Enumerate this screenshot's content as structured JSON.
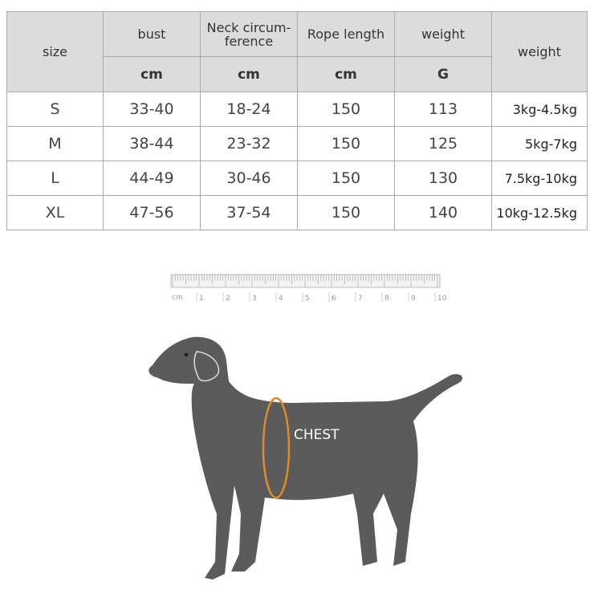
{
  "table": {
    "header": {
      "size": "size",
      "columns": [
        {
          "label": "bust",
          "unit": "cm"
        },
        {
          "label": "Neck circum-\nference",
          "unit": "cm"
        },
        {
          "label": "Rope length",
          "unit": "cm"
        },
        {
          "label": "weight",
          "unit": "G"
        }
      ],
      "weight": "weight"
    },
    "rows": [
      [
        "S",
        "33-40",
        "18-24",
        "150",
        "113",
        "3kg-4.5kg"
      ],
      [
        "M",
        "38-44",
        "23-32",
        "150",
        "125",
        "5kg-7kg"
      ],
      [
        "L",
        "44-49",
        "30-46",
        "150",
        "130",
        "7.5kg-10kg"
      ],
      [
        "XL",
        "47-56",
        "37-54",
        "150",
        "140",
        "10kg-12.5kg"
      ]
    ]
  },
  "ruler": {
    "unit": "cm",
    "marks": [
      1,
      2,
      3,
      4,
      5,
      6,
      7,
      8,
      9,
      10
    ]
  },
  "diagram": {
    "label": "CHEST"
  }
}
